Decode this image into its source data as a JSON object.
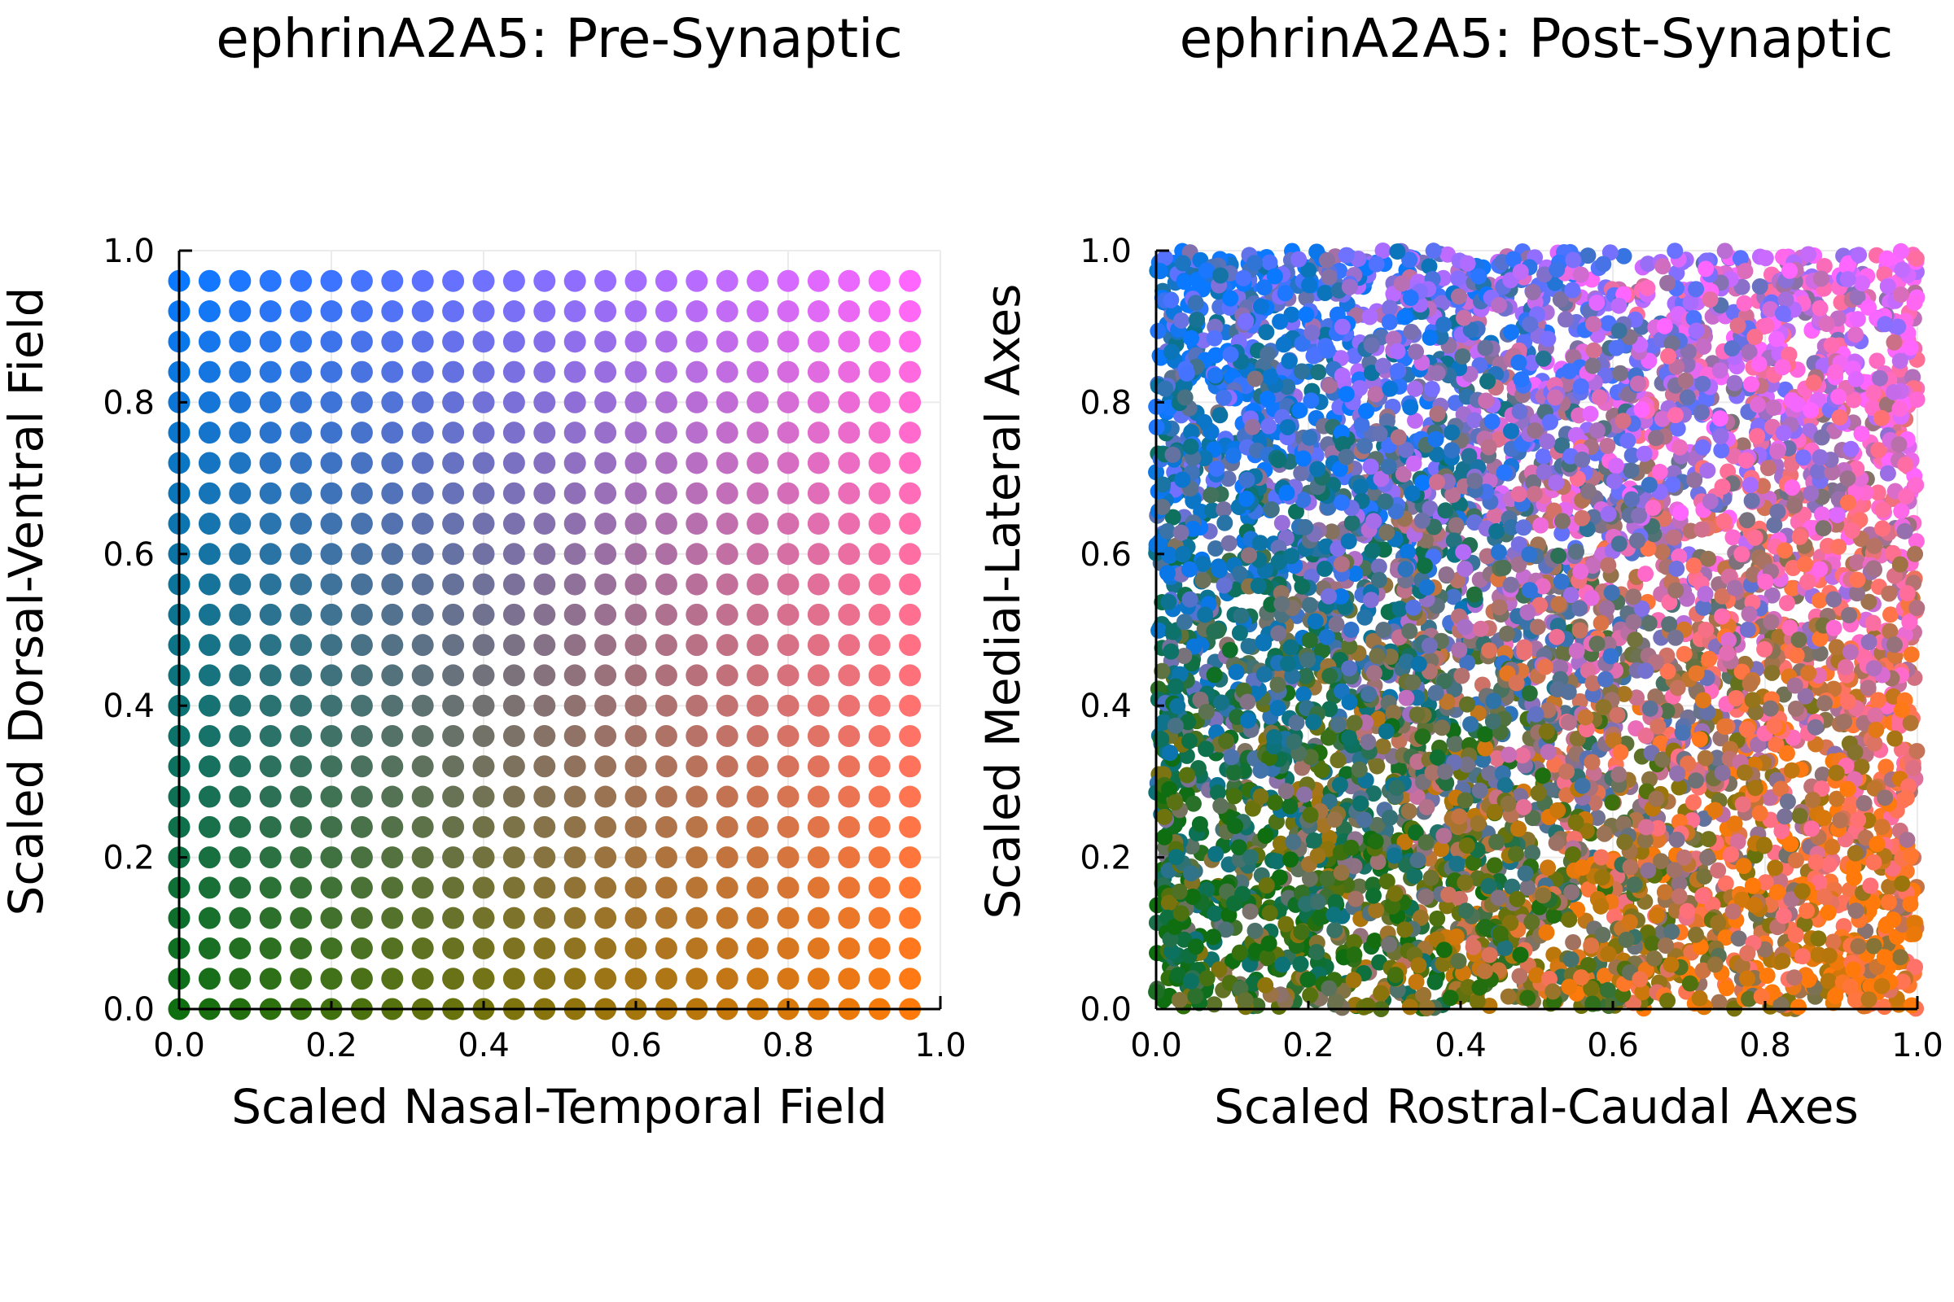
{
  "chart_data": [
    {
      "type": "scatter",
      "title": "ephrinA2A5: Pre-Synaptic",
      "xlabel": "Scaled Nasal-Temporal Field",
      "ylabel": "Scaled Dorsal-Ventral Field",
      "xlim": [
        0.0,
        1.0
      ],
      "ylim": [
        0.0,
        1.0
      ],
      "xticks": [
        "0.0",
        "0.2",
        "0.4",
        "0.6",
        "0.8",
        "1.0"
      ],
      "yticks": [
        "0.0",
        "0.2",
        "0.4",
        "0.6",
        "0.8",
        "1.0"
      ],
      "grid": true,
      "legend": "none",
      "points": {
        "layout": "regular grid",
        "x_start": 0.0,
        "x_step": 0.04,
        "x_count": 25,
        "y_start": 0.0,
        "y_step": 0.04,
        "y_count": 25
      },
      "color_corners": {
        "bottom_left": "#0f6e0f",
        "bottom_right": "#ff7a0a",
        "top_left": "#0a78ff",
        "top_right": "#ff66ff"
      }
    },
    {
      "type": "scatter",
      "title": "ephrinA2A5: Post-Synaptic",
      "xlabel": "Scaled Rostral-Caudal Axes",
      "ylabel": "Scaled Medial-Lateral Axes",
      "xlim": [
        0.0,
        1.0
      ],
      "ylim": [
        0.0,
        1.0
      ],
      "xticks": [
        "0.0",
        "0.2",
        "0.4",
        "0.6",
        "0.8",
        "1.0"
      ],
      "yticks": [
        "0.0",
        "0.2",
        "0.4",
        "0.6",
        "0.8",
        "1.0"
      ],
      "grid": true,
      "legend": "none",
      "points": {
        "layout": "dense random scatter",
        "count": 6000,
        "color_source": "pre-synaptic grid colors, topographically mapped with noise"
      }
    }
  ]
}
